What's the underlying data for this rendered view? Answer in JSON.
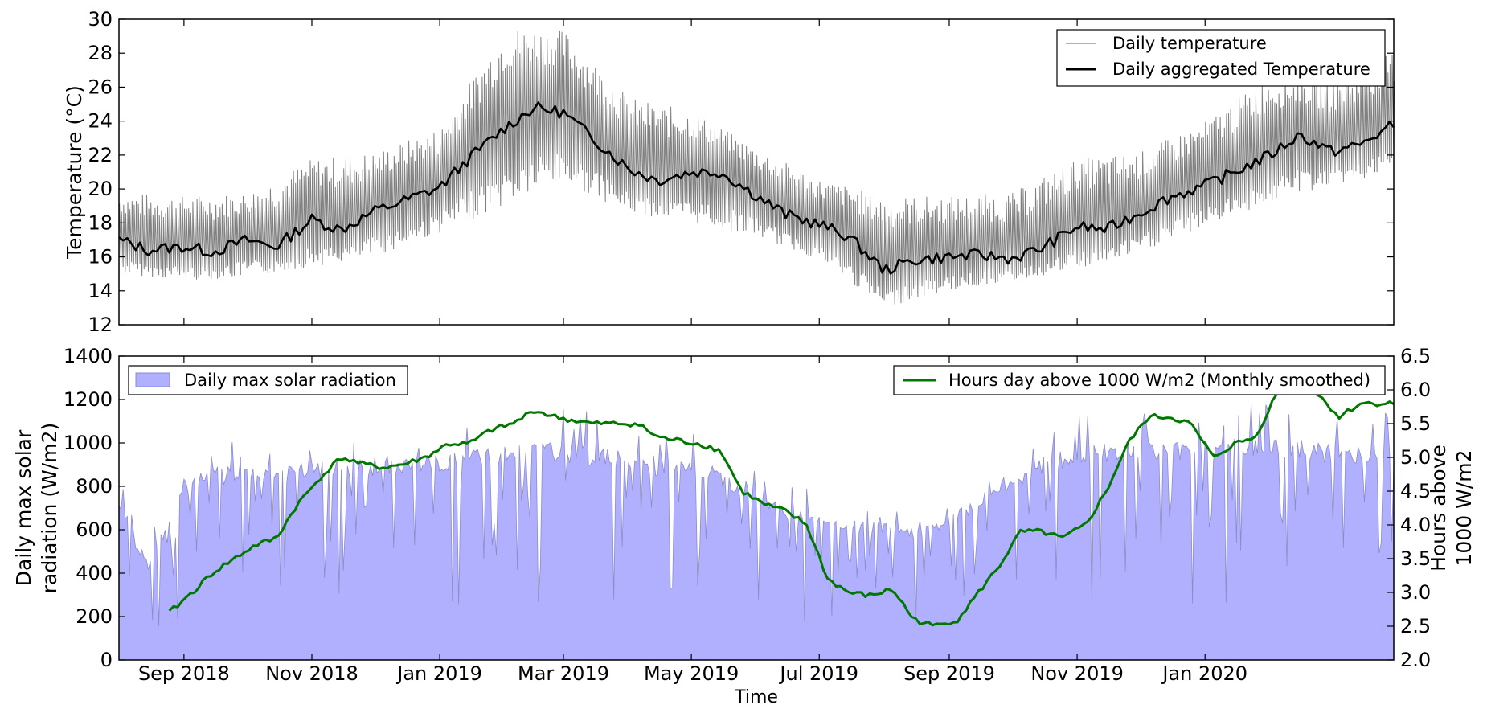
{
  "chart_data": [
    {
      "type": "line",
      "ylabel": "Temperature (°C)",
      "ylim": [
        12,
        30
      ],
      "yticks": [
        "12",
        "14",
        "16",
        "18",
        "20",
        "22",
        "24",
        "26",
        "28",
        "30"
      ],
      "xlim": [
        "2018-08-01",
        "2020-03-31"
      ],
      "legend": {
        "placement": "top-right",
        "entries": [
          "Daily temperature",
          "Daily aggregated Temperature"
        ]
      },
      "series": [
        {
          "name": "Daily aggregated Temperature",
          "color": "#000000",
          "x": [
            "2018-08-01",
            "2018-08-15",
            "2018-09-01",
            "2018-09-15",
            "2018-10-01",
            "2018-10-15",
            "2018-11-01",
            "2018-11-15",
            "2018-12-01",
            "2018-12-15",
            "2019-01-01",
            "2019-01-15",
            "2019-02-01",
            "2019-02-15",
            "2019-03-01",
            "2019-03-15",
            "2019-04-01",
            "2019-04-15",
            "2019-05-01",
            "2019-05-15",
            "2019-06-01",
            "2019-06-15",
            "2019-07-01",
            "2019-07-15",
            "2019-08-01",
            "2019-08-15",
            "2019-09-01",
            "2019-09-15",
            "2019-10-01",
            "2019-10-15",
            "2019-11-01",
            "2019-11-15",
            "2019-12-01",
            "2019-12-15",
            "2020-01-01",
            "2020-01-15",
            "2020-02-01",
            "2020-02-15",
            "2020-03-01",
            "2020-03-15",
            "2020-03-31"
          ],
          "values": [
            17.0,
            16.4,
            16.6,
            16.3,
            17.0,
            16.6,
            18.2,
            17.6,
            18.7,
            19.3,
            20.1,
            21.8,
            23.6,
            24.8,
            24.5,
            23.0,
            21.2,
            20.5,
            21.0,
            21.0,
            19.6,
            18.5,
            17.9,
            17.2,
            15.2,
            15.8,
            16.0,
            16.1,
            15.9,
            16.5,
            17.8,
            17.6,
            18.6,
            19.5,
            20.2,
            21.0,
            22.0,
            23.2,
            22.2,
            22.6,
            23.8
          ]
        },
        {
          "name": "Daily temperature",
          "color": "#808080",
          "note_series": "daily min–max oscillation around the aggregated curve",
          "x": [
            "2018-08-01",
            "2018-09-01",
            "2018-10-01",
            "2018-11-01",
            "2018-12-01",
            "2019-01-01",
            "2019-02-01",
            "2019-03-01",
            "2019-04-01",
            "2019-05-01",
            "2019-06-01",
            "2019-07-01",
            "2019-08-01",
            "2019-09-01",
            "2019-10-01",
            "2019-11-01",
            "2019-12-01",
            "2020-01-01",
            "2020-02-01",
            "2020-03-01",
            "2020-03-31"
          ],
          "min": [
            15.0,
            14.6,
            14.8,
            15.4,
            16.0,
            17.4,
            19.0,
            20.4,
            18.6,
            18.0,
            17.2,
            15.8,
            13.0,
            14.0,
            14.6,
            15.2,
            16.2,
            17.8,
            19.2,
            20.2,
            21.0
          ],
          "max": [
            19.8,
            19.6,
            19.8,
            21.8,
            22.2,
            23.6,
            29.6,
            29.4,
            25.4,
            24.6,
            22.4,
            20.6,
            19.6,
            19.6,
            19.8,
            21.8,
            22.2,
            24.0,
            26.8,
            26.4,
            28.2
          ]
        }
      ]
    },
    {
      "type": "area",
      "xlabel": "Time",
      "ylabel": "Daily max solar\nradiation (W/m2)",
      "ylim": [
        0,
        1400
      ],
      "yticks": [
        "0",
        "200",
        "400",
        "600",
        "800",
        "1000",
        "1200",
        "1400"
      ],
      "y2label": "Hours above\n1000 W/m2",
      "y2lim": [
        2.0,
        6.5
      ],
      "y2ticks": [
        "2.0",
        "2.5",
        "3.0",
        "3.5",
        "4.0",
        "4.5",
        "5.0",
        "5.5",
        "6.0",
        "6.5"
      ],
      "xlim": [
        "2018-08-01",
        "2020-03-31"
      ],
      "xticks": [
        "Sep 2018",
        "Nov 2018",
        "Jan 2019",
        "Mar 2019",
        "May 2019",
        "Jul 2019",
        "Sep 2019",
        "Nov 2019",
        "Jan 2020"
      ],
      "legend": {
        "left": "Daily max solar radiation",
        "right": "Hours day above 1000 W/m2 (Monthly smoothed)"
      },
      "series": [
        {
          "name": "Daily max solar radiation",
          "color": "#b0b0ff",
          "x": [
            "2018-08-01",
            "2018-08-15",
            "2018-09-01",
            "2018-09-15",
            "2018-10-01",
            "2018-10-15",
            "2018-11-01",
            "2018-11-15",
            "2018-12-01",
            "2018-12-15",
            "2019-01-01",
            "2019-01-15",
            "2019-02-01",
            "2019-02-15",
            "2019-03-01",
            "2019-03-15",
            "2019-04-01",
            "2019-04-15",
            "2019-05-01",
            "2019-05-15",
            "2019-06-01",
            "2019-06-15",
            "2019-07-01",
            "2019-07-15",
            "2019-08-01",
            "2019-08-15",
            "2019-09-01",
            "2019-09-15",
            "2019-10-01",
            "2019-10-15",
            "2019-11-01",
            "2019-11-15",
            "2019-12-01",
            "2019-12-15",
            "2020-01-01",
            "2020-01-15",
            "2020-02-01",
            "2020-02-15",
            "2020-03-01",
            "2020-03-15",
            "2020-03-31"
          ],
          "values": [
            700,
            450,
            820,
            880,
            870,
            880,
            900,
            910,
            920,
            930,
            930,
            960,
            980,
            990,
            990,
            970,
            940,
            920,
            900,
            870,
            780,
            700,
            650,
            640,
            620,
            600,
            650,
            760,
            850,
            930,
            960,
            980,
            990,
            1000,
            990,
            1010,
            1020,
            1000,
            980,
            960,
            950
          ]
        },
        {
          "name": "Hours day above 1000 W/m2 (Monthly smoothed)",
          "color": "#007800",
          "axis": "right",
          "x": [
            "2018-08-25",
            "2018-09-05",
            "2018-09-15",
            "2018-09-25",
            "2018-10-05",
            "2018-10-15",
            "2018-10-25",
            "2018-11-05",
            "2018-11-15",
            "2018-11-25",
            "2018-12-05",
            "2018-12-15",
            "2018-12-25",
            "2019-01-05",
            "2019-01-15",
            "2019-01-25",
            "2019-02-05",
            "2019-02-15",
            "2019-02-25",
            "2019-03-05",
            "2019-03-15",
            "2019-03-25",
            "2019-04-05",
            "2019-04-15",
            "2019-04-25",
            "2019-05-05",
            "2019-05-15",
            "2019-05-25",
            "2019-06-05",
            "2019-06-15",
            "2019-06-25",
            "2019-07-05",
            "2019-07-15",
            "2019-07-25",
            "2019-08-05",
            "2019-08-15",
            "2019-08-25",
            "2019-09-05",
            "2019-09-15",
            "2019-09-25",
            "2019-10-05",
            "2019-10-15",
            "2019-10-25",
            "2019-11-05",
            "2019-11-15",
            "2019-11-25",
            "2019-12-05",
            "2019-12-15",
            "2019-12-25",
            "2020-01-05",
            "2020-01-15",
            "2020-01-25",
            "2020-02-05",
            "2020-02-15",
            "2020-02-25",
            "2020-03-05",
            "2020-03-15",
            "2020-03-31"
          ],
          "values": [
            2.7,
            3.0,
            3.3,
            3.5,
            3.7,
            3.8,
            4.3,
            4.7,
            5.0,
            4.9,
            4.85,
            4.9,
            5.0,
            5.2,
            5.2,
            5.4,
            5.5,
            5.7,
            5.6,
            5.55,
            5.5,
            5.5,
            5.5,
            5.3,
            5.25,
            5.2,
            5.1,
            4.5,
            4.3,
            4.2,
            4.0,
            3.2,
            3.0,
            2.95,
            3.05,
            2.6,
            2.5,
            2.6,
            3.0,
            3.4,
            3.9,
            3.9,
            3.8,
            4.0,
            4.5,
            5.2,
            5.6,
            5.6,
            5.5,
            5.0,
            5.2,
            5.3,
            6.0,
            6.1,
            5.9,
            5.6,
            5.8,
            5.8
          ]
        }
      ]
    }
  ]
}
